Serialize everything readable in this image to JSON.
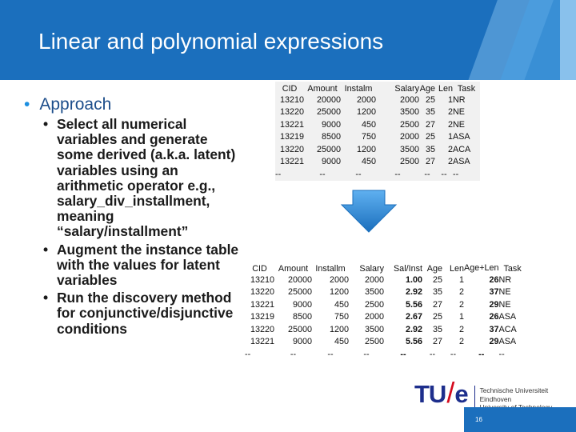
{
  "slide": {
    "title": "Linear and polynomial expressions",
    "bullet": "Approach",
    "sub_bullets": [
      "Select all numerical variables and generate some derived (a.k.a. latent) variables using an arithmetic operator e.g., salary_div_installment, meaning “salary/installment”",
      "Augment the instance table with the values for latent variables",
      "Run the discovery method for conjunctive/disjunctive conditions"
    ]
  },
  "table_original": {
    "columns": [
      "CID",
      "Amount",
      "Instalm",
      "Salary",
      "Age",
      "Len",
      "Task"
    ],
    "rows": [
      [
        "13210",
        "20000",
        "2000",
        "2000",
        "25",
        "1",
        "NR"
      ],
      [
        "13220",
        "25000",
        "1200",
        "3500",
        "35",
        "2",
        "NE"
      ],
      [
        "13221",
        "9000",
        "450",
        "2500",
        "27",
        "2",
        "NE"
      ],
      [
        "13219",
        "8500",
        "750",
        "2000",
        "25",
        "1",
        "ASA"
      ],
      [
        "13220",
        "25000",
        "1200",
        "3500",
        "35",
        "2",
        "ACA"
      ],
      [
        "13221",
        "9000",
        "450",
        "2500",
        "27",
        "2",
        "ASA"
      ],
      [
        "--",
        "--",
        "--",
        "--",
        "--",
        "--",
        "--"
      ]
    ]
  },
  "table_augmented": {
    "columns": [
      "CID",
      "Amount",
      "Installm",
      "Salary",
      "Sal/Inst",
      "Age",
      "Len",
      "Age+Len",
      "Task"
    ],
    "rows": [
      [
        "13210",
        "20000",
        "2000",
        "2000",
        "1.00",
        "25",
        "1",
        "26",
        "NR"
      ],
      [
        "13220",
        "25000",
        "1200",
        "3500",
        "2.92",
        "35",
        "2",
        "37",
        "NE"
      ],
      [
        "13221",
        "9000",
        "450",
        "2500",
        "5.56",
        "27",
        "2",
        "29",
        "NE"
      ],
      [
        "13219",
        "8500",
        "750",
        "2000",
        "2.67",
        "25",
        "1",
        "26",
        "ASA"
      ],
      [
        "13220",
        "25000",
        "1200",
        "3500",
        "2.92",
        "35",
        "2",
        "37",
        "ACA"
      ],
      [
        "13221",
        "9000",
        "450",
        "2500",
        "5.56",
        "27",
        "2",
        "29",
        "ASA"
      ],
      [
        "--",
        "--",
        "--",
        "--",
        "--",
        "--",
        "--",
        "--",
        "--"
      ]
    ]
  },
  "logo": {
    "mark_left": "TU",
    "mark_slash": "/",
    "mark_right": "e",
    "lines": [
      "Technische Universiteit",
      "Eindhoven",
      "University of Technology"
    ]
  },
  "footer": {
    "page_number": "16"
  },
  "colors": {
    "brand_blue": "#1b6fbd",
    "title_text": "#ffffff",
    "logo_blue": "#1d2e8c",
    "logo_red": "#d40b1e",
    "arrow_blue": "#2a7fd4"
  }
}
